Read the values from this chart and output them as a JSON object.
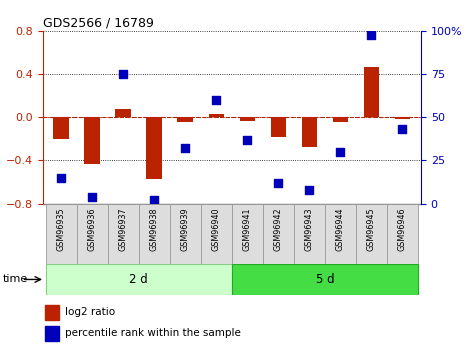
{
  "title": "GDS2566 / 16789",
  "samples": [
    "GSM96935",
    "GSM96936",
    "GSM96937",
    "GSM96938",
    "GSM96939",
    "GSM96940",
    "GSM96941",
    "GSM96942",
    "GSM96943",
    "GSM96944",
    "GSM96945",
    "GSM96946"
  ],
  "log2_ratio": [
    -0.2,
    -0.43,
    0.08,
    -0.57,
    -0.04,
    0.03,
    -0.03,
    -0.18,
    -0.28,
    -0.04,
    0.47,
    -0.02
  ],
  "percentile_rank": [
    15,
    4,
    75,
    2,
    32,
    60,
    37,
    12,
    8,
    30,
    98,
    43
  ],
  "group1_label": "2 d",
  "group1_n": 6,
  "group1_facecolor": "#CCFFCC",
  "group1_edgecolor": "#88CC88",
  "group2_label": "5 d",
  "group2_n": 6,
  "group2_facecolor": "#44DD44",
  "group2_edgecolor": "#22AA22",
  "ylim_left": [
    -0.8,
    0.8
  ],
  "ylim_right": [
    0,
    100
  ],
  "yticks_left": [
    -0.8,
    -0.4,
    0.0,
    0.4,
    0.8
  ],
  "yticks_right": [
    0,
    25,
    50,
    75,
    100
  ],
  "ytick_labels_right": [
    "0",
    "25",
    "50",
    "75",
    "100%"
  ],
  "bar_color": "#BB2200",
  "dot_color": "#0000BB",
  "bg_color": "#FFFFFF",
  "plot_bg": "#FFFFFF",
  "time_label": "time",
  "legend_bar": "log2 ratio",
  "legend_dot": "percentile rank within the sample",
  "bar_width": 0.5,
  "dot_size": 35
}
